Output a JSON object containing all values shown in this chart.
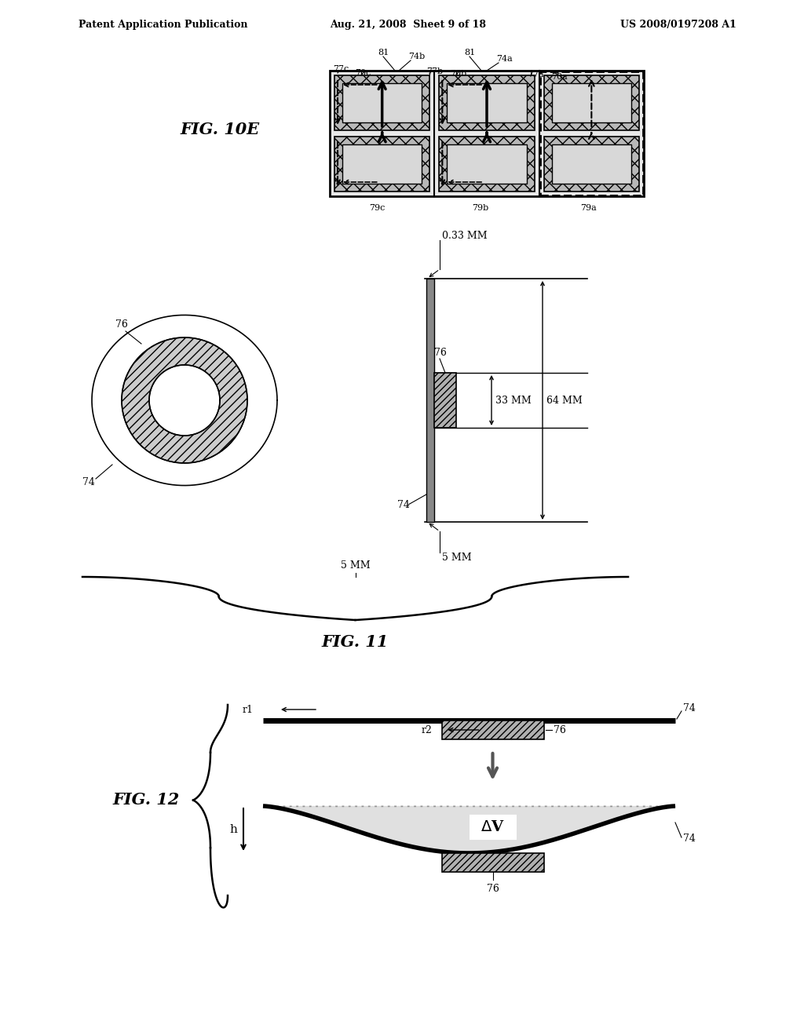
{
  "header_left": "Patent Application Publication",
  "header_mid": "Aug. 21, 2008  Sheet 9 of 18",
  "header_right": "US 2008/0197208 A1",
  "fig10e_label": "FIG. 10E",
  "fig11_label": "FIG. 11",
  "fig12_label": "FIG. 12",
  "bg_color": "#ffffff",
  "line_color": "#000000"
}
